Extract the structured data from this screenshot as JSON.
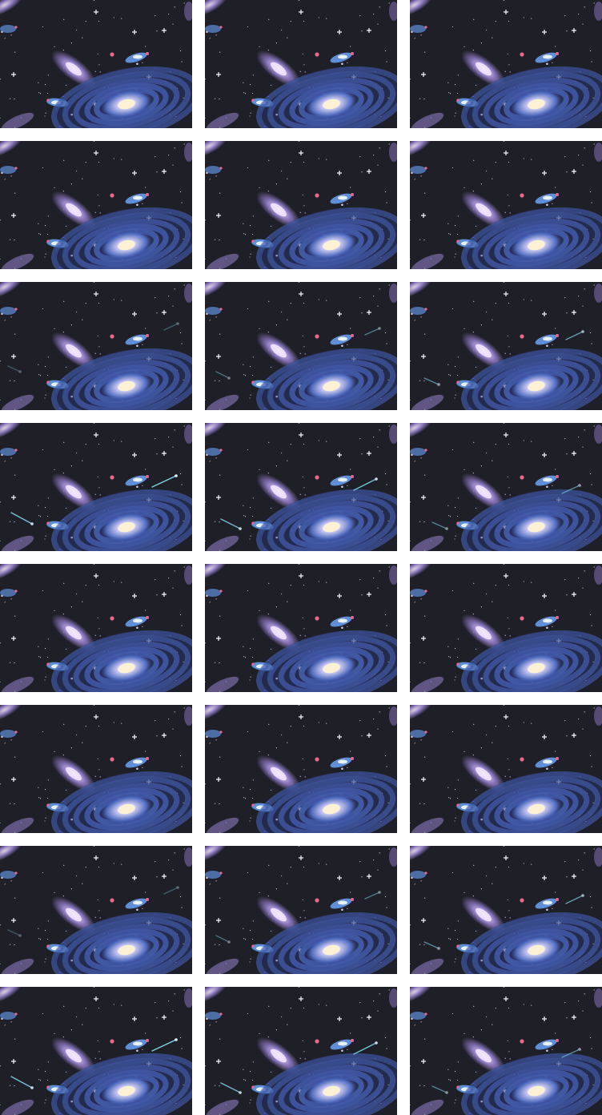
{
  "sheet": {
    "rows": 8,
    "columns": 3,
    "background_color": "#ffffff",
    "frame_count": 24
  },
  "palette": {
    "space": "#1f1f28",
    "star": "#e8e4ff",
    "spiral_outer": "#2d3f8a",
    "spiral_mid": "#4f6bbf",
    "spiral_core": "#fff1d6",
    "elliptical": "#8c78c0",
    "elliptical_core": "#f3e6ff",
    "nebula_blue": "#5e8fd8",
    "nebula_pink": "#e86a8a",
    "comet": "#7fd6e6"
  },
  "frames": [
    {
      "index": 1,
      "comet": 0
    },
    {
      "index": 2,
      "comet": 0
    },
    {
      "index": 3,
      "comet": 0
    },
    {
      "index": 4,
      "comet": 0
    },
    {
      "index": 5,
      "comet": 0
    },
    {
      "index": 6,
      "comet": 0
    },
    {
      "index": 7,
      "comet": 1
    },
    {
      "index": 8,
      "comet": 2
    },
    {
      "index": 9,
      "comet": 3
    },
    {
      "index": 10,
      "comet": 4
    },
    {
      "index": 11,
      "comet": 5
    },
    {
      "index": 12,
      "comet": 6
    },
    {
      "index": 13,
      "comet": 0
    },
    {
      "index": 14,
      "comet": 0
    },
    {
      "index": 15,
      "comet": 0
    },
    {
      "index": 16,
      "comet": 0
    },
    {
      "index": 17,
      "comet": 0
    },
    {
      "index": 18,
      "comet": 0
    },
    {
      "index": 19,
      "comet": 1
    },
    {
      "index": 20,
      "comet": 2
    },
    {
      "index": 21,
      "comet": 3
    },
    {
      "index": 22,
      "comet": 4
    },
    {
      "index": 23,
      "comet": 5
    },
    {
      "index": 24,
      "comet": 6
    }
  ]
}
